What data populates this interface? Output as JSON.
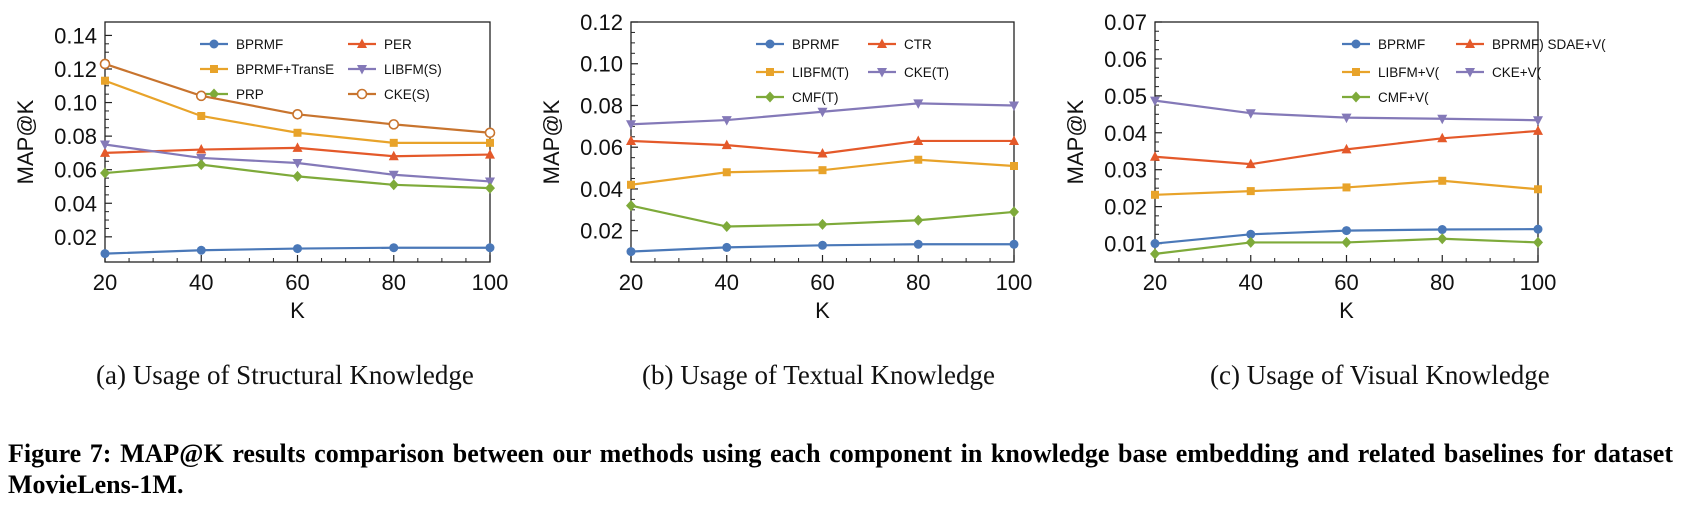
{
  "figure_caption": "Figure 7: MAP@K results comparison between our methods using each component in knowledge base embedding and related baselines for dataset MovieLens-1M.",
  "panel_captions": [
    "(a) Usage of Structural Knowledge",
    "(b) Usage of Textual Knowledge",
    "(c) Usage of Visual Knowledge"
  ],
  "colors": {
    "blue": "#4a78b8",
    "red": "#e4592a",
    "orange": "#e8a32a",
    "purple": "#8479b8",
    "green": "#7eaa3a",
    "brown": "#c8742e"
  },
  "chart_data": [
    {
      "type": "line",
      "xlabel": "K",
      "ylabel": "MAP@K",
      "x": [
        20,
        40,
        60,
        80,
        100
      ],
      "xlim": [
        20,
        100
      ],
      "ylim": [
        0.005,
        0.148
      ],
      "yticks": [
        0.02,
        0.04,
        0.06,
        0.08,
        0.1,
        0.12,
        0.14
      ],
      "ytick_labels": [
        "0.02",
        "0.04",
        "0.06",
        "0.08",
        "0.10",
        "0.12",
        "0.14"
      ],
      "legend_position": "top-right",
      "series": [
        {
          "name": "BPRMF",
          "color": "blue",
          "marker": "circle",
          "values": [
            0.01,
            0.012,
            0.013,
            0.0135,
            0.0135
          ]
        },
        {
          "name": "PER",
          "color": "red",
          "marker": "triangle-up",
          "values": [
            0.07,
            0.072,
            0.073,
            0.068,
            0.069
          ]
        },
        {
          "name": "BPRMF+TransE",
          "color": "orange",
          "marker": "square",
          "values": [
            0.113,
            0.092,
            0.082,
            0.076,
            0.076
          ]
        },
        {
          "name": "LIBFM(S)",
          "color": "purple",
          "marker": "triangle-down",
          "values": [
            0.075,
            0.067,
            0.064,
            0.057,
            0.053
          ]
        },
        {
          "name": "PRP",
          "color": "green",
          "marker": "diamond",
          "values": [
            0.058,
            0.063,
            0.056,
            0.051,
            0.049
          ]
        },
        {
          "name": "CKE(S)",
          "color": "brown",
          "marker": "open-circle",
          "values": [
            0.123,
            0.104,
            0.093,
            0.087,
            0.082
          ]
        }
      ]
    },
    {
      "type": "line",
      "xlabel": "K",
      "ylabel": "MAP@K",
      "x": [
        20,
        40,
        60,
        80,
        100
      ],
      "xlim": [
        20,
        100
      ],
      "ylim": [
        0.005,
        0.12
      ],
      "yticks": [
        0.02,
        0.04,
        0.06,
        0.08,
        0.1,
        0.12
      ],
      "ytick_labels": [
        "0.02",
        "0.04",
        "0.06",
        "0.08",
        "0.10",
        "0.12"
      ],
      "legend_position": "top-right",
      "series": [
        {
          "name": "BPRMF",
          "color": "blue",
          "marker": "circle",
          "values": [
            0.01,
            0.012,
            0.013,
            0.0135,
            0.0135
          ]
        },
        {
          "name": "CTR",
          "color": "red",
          "marker": "triangle-up",
          "values": [
            0.063,
            0.061,
            0.057,
            0.063,
            0.063
          ]
        },
        {
          "name": "LIBFM(T)",
          "color": "orange",
          "marker": "square",
          "values": [
            0.042,
            0.048,
            0.049,
            0.054,
            0.051
          ]
        },
        {
          "name": "CKE(T)",
          "color": "purple",
          "marker": "triangle-down",
          "values": [
            0.071,
            0.073,
            0.077,
            0.081,
            0.08
          ]
        },
        {
          "name": "CMF(T)",
          "color": "green",
          "marker": "diamond",
          "values": [
            0.032,
            0.022,
            0.023,
            0.025,
            0.029
          ]
        }
      ]
    },
    {
      "type": "line",
      "xlabel": "K",
      "ylabel": "MAP@K",
      "x": [
        20,
        40,
        60,
        80,
        100
      ],
      "xlim": [
        20,
        100
      ],
      "ylim": [
        0.005,
        0.07
      ],
      "yticks": [
        0.01,
        0.02,
        0.03,
        0.04,
        0.05,
        0.06,
        0.07
      ],
      "ytick_labels": [
        "0.01",
        "0.02",
        "0.03",
        "0.04",
        "0.05",
        "0.06",
        "0.07"
      ],
      "legend_position": "top-right",
      "series": [
        {
          "name": "BPRMF",
          "color": "blue",
          "marker": "circle",
          "values": [
            0.01,
            0.0125,
            0.0135,
            0.0138,
            0.0139
          ]
        },
        {
          "name": "BPRMF) SDAE+V(",
          "color": "red",
          "marker": "triangle-up",
          "values": [
            0.0335,
            0.0315,
            0.0355,
            0.0385,
            0.0405
          ]
        },
        {
          "name": "LIBFM+V(",
          "color": "orange",
          "marker": "square",
          "values": [
            0.0232,
            0.0242,
            0.0252,
            0.027,
            0.0247
          ]
        },
        {
          "name": "CKE+V(",
          "color": "purple",
          "marker": "triangle-down",
          "values": [
            0.0487,
            0.0453,
            0.0441,
            0.0438,
            0.0434
          ]
        },
        {
          "name": "CMF+V(",
          "color": "green",
          "marker": "diamond",
          "values": [
            0.0072,
            0.0103,
            0.0103,
            0.0113,
            0.0103
          ]
        }
      ]
    }
  ]
}
